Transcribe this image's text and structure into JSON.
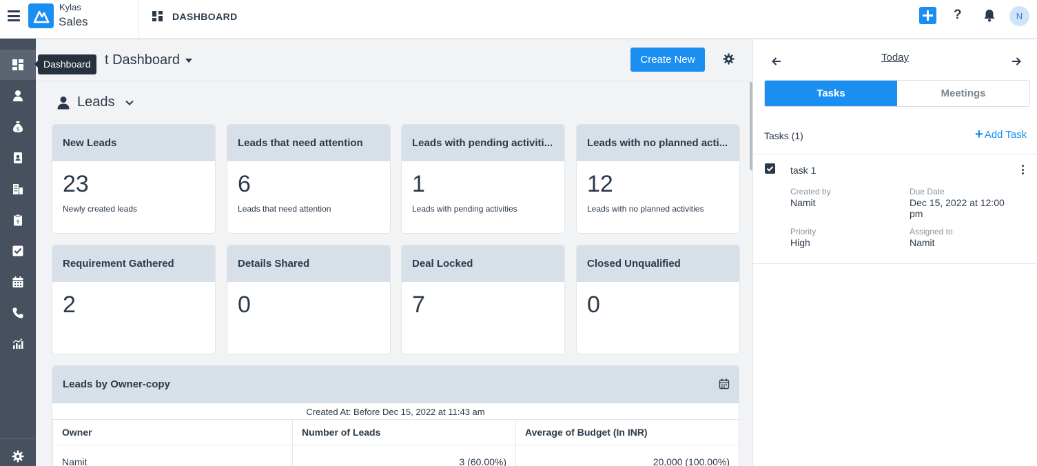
{
  "header": {
    "brand_top": "Kylas",
    "brand_bottom": "Sales",
    "breadcrumb": "DASHBOARD",
    "help_label": "?",
    "avatar_initial": "N",
    "accent_color": "#1b8ef2"
  },
  "sidebar": {
    "tooltip": "Dashboard",
    "items": [
      {
        "icon": "dashboard-icon"
      },
      {
        "icon": "person-icon"
      },
      {
        "icon": "money-bag-icon"
      },
      {
        "icon": "contact-card-icon"
      },
      {
        "icon": "building-icon"
      },
      {
        "icon": "clipboard-icon"
      },
      {
        "icon": "checkbox-icon"
      },
      {
        "icon": "calendar-icon"
      },
      {
        "icon": "phone-icon"
      },
      {
        "icon": "reports-icon"
      }
    ],
    "settings_icon": "gear-icon"
  },
  "main": {
    "dashboard_title": "t Dashboard",
    "create_button": "Create New",
    "section_title": "Leads",
    "cards": [
      {
        "title": "New Leads",
        "value": "23",
        "subtitle": "Newly created leads"
      },
      {
        "title": "Leads that need attention",
        "value": "6",
        "subtitle": "Leads that need attention"
      },
      {
        "title": "Leads with pending activiti...",
        "value": "1",
        "subtitle": "Leads with pending activities"
      },
      {
        "title": "Leads with no planned acti...",
        "value": "12",
        "subtitle": "Leads with no planned activities"
      },
      {
        "title": "Requirement Gathered",
        "value": "2",
        "subtitle": ""
      },
      {
        "title": "Details Shared",
        "value": "0",
        "subtitle": ""
      },
      {
        "title": "Deal Locked",
        "value": "7",
        "subtitle": ""
      },
      {
        "title": "Closed Unqualified",
        "value": "0",
        "subtitle": ""
      }
    ],
    "report": {
      "title": "Leads by Owner-copy",
      "subtitle": "Created At: Before Dec 15, 2022 at 11:43 am",
      "columns": [
        "Owner",
        "Number of Leads",
        "Average of Budget (In INR)"
      ],
      "rows": [
        [
          "Namit",
          "3 (60.00%)",
          "20,000 (100.00%)"
        ]
      ]
    }
  },
  "right_panel": {
    "date_label": "Today",
    "tabs": [
      "Tasks",
      "Meetings"
    ],
    "active_tab": "Tasks",
    "tasks_count": "Tasks (1)",
    "add_task": "Add Task",
    "task": {
      "title": "task 1",
      "created_by_label": "Created by",
      "created_by": "Namit",
      "due_date_label": "Due Date",
      "due_date_line1": "Dec 15, 2022 at 12:00",
      "due_date_line2": "pm",
      "priority_label": "Priority",
      "priority": "High",
      "assigned_to_label": "Assigned to",
      "assigned_to": "Namit"
    }
  }
}
